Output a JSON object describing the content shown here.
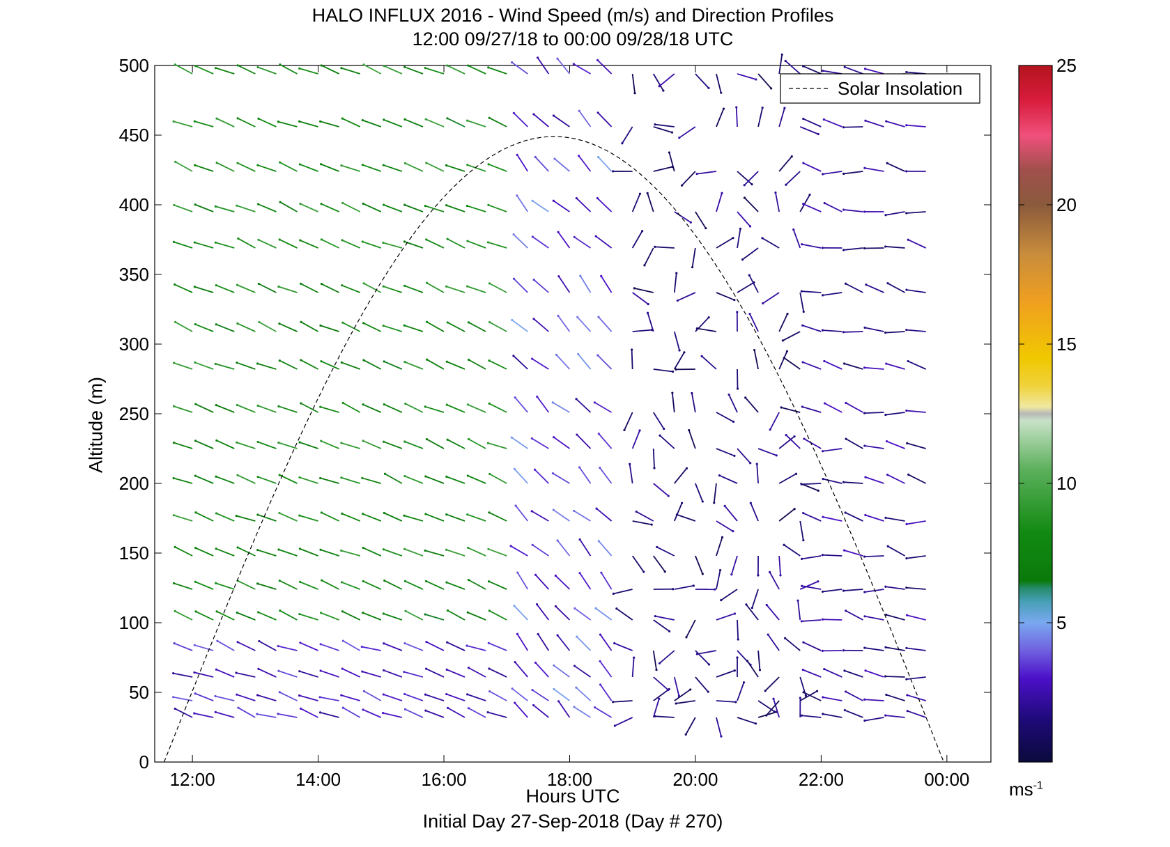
{
  "chart_data": {
    "type": "vector-field",
    "title": "HALO INFLUX 2016 - Wind Speed (m/s) and Direction Profiles",
    "subtitle": "12:00 09/27/18 to 00:00 09/28/18  UTC",
    "xlabel": "Hours UTC",
    "ylabel": "Altitude (m)",
    "footer": "Initial Day 27-Sep-2018 (Day # 270)",
    "xlim": [
      11.4,
      24.7
    ],
    "ylim": [
      0,
      500
    ],
    "x_ticks": [
      12,
      14,
      16,
      18,
      20,
      22,
      24
    ],
    "x_tick_labels": [
      "12:00",
      "14:00",
      "16:00",
      "18:00",
      "20:00",
      "22:00",
      "00:00"
    ],
    "y_ticks": [
      0,
      50,
      100,
      150,
      200,
      250,
      300,
      350,
      400,
      450,
      500
    ],
    "y_tick_labels": [
      "0",
      "50",
      "100",
      "150",
      "200",
      "250",
      "300",
      "350",
      "400",
      "450",
      "500"
    ],
    "colorbar": {
      "range": [
        0,
        25
      ],
      "ticks": [
        5,
        10,
        15,
        20,
        25
      ],
      "tick_labels": [
        "5",
        "10",
        "15",
        "20",
        "25"
      ],
      "unit_base": "ms",
      "unit_exp": "-1"
    },
    "legend": {
      "location": "top-right",
      "entries": [
        {
          "label": "Solar Insolation",
          "style": "dashed"
        }
      ]
    },
    "solar_insolation": {
      "start_hour": 11.55,
      "peak_hour": 17.75,
      "peak_altitude": 449,
      "end_hour": 23.95
    },
    "altitudes": [
      32,
      44,
      61,
      80,
      102,
      124,
      148,
      173,
      200,
      225,
      251,
      282,
      309,
      337,
      369,
      395,
      424,
      456,
      494
    ],
    "hours_start": 12.0,
    "hours_step": 0.3333,
    "hours_count": 36,
    "wind_field_note": "Per-profile wind speed (m/s) and direction (deg) are given as piecewise regimes below.",
    "regimes": [
      {
        "hours": [
          12.0,
          17.0
        ],
        "alt_min": 95,
        "speed": [
          6.5,
          9.5
        ],
        "direction": [
          285,
          300
        ]
      },
      {
        "hours": [
          12.0,
          17.0
        ],
        "alt_min": 0,
        "alt_max": 95,
        "speed": [
          2.0,
          4.0
        ],
        "direction": [
          280,
          300
        ]
      },
      {
        "hours": [
          17.0,
          18.7
        ],
        "alt_min": 0,
        "speed": [
          2.0,
          5.0
        ],
        "direction": [
          300,
          330
        ]
      },
      {
        "hours": [
          18.7,
          21.7
        ],
        "alt_min": 0,
        "speed": [
          0.5,
          2.5
        ],
        "direction": [
          0,
          360
        ]
      },
      {
        "hours": [
          21.7,
          23.7
        ],
        "alt_min": 0,
        "speed": [
          1.0,
          3.0
        ],
        "direction": [
          260,
          300
        ]
      }
    ]
  }
}
